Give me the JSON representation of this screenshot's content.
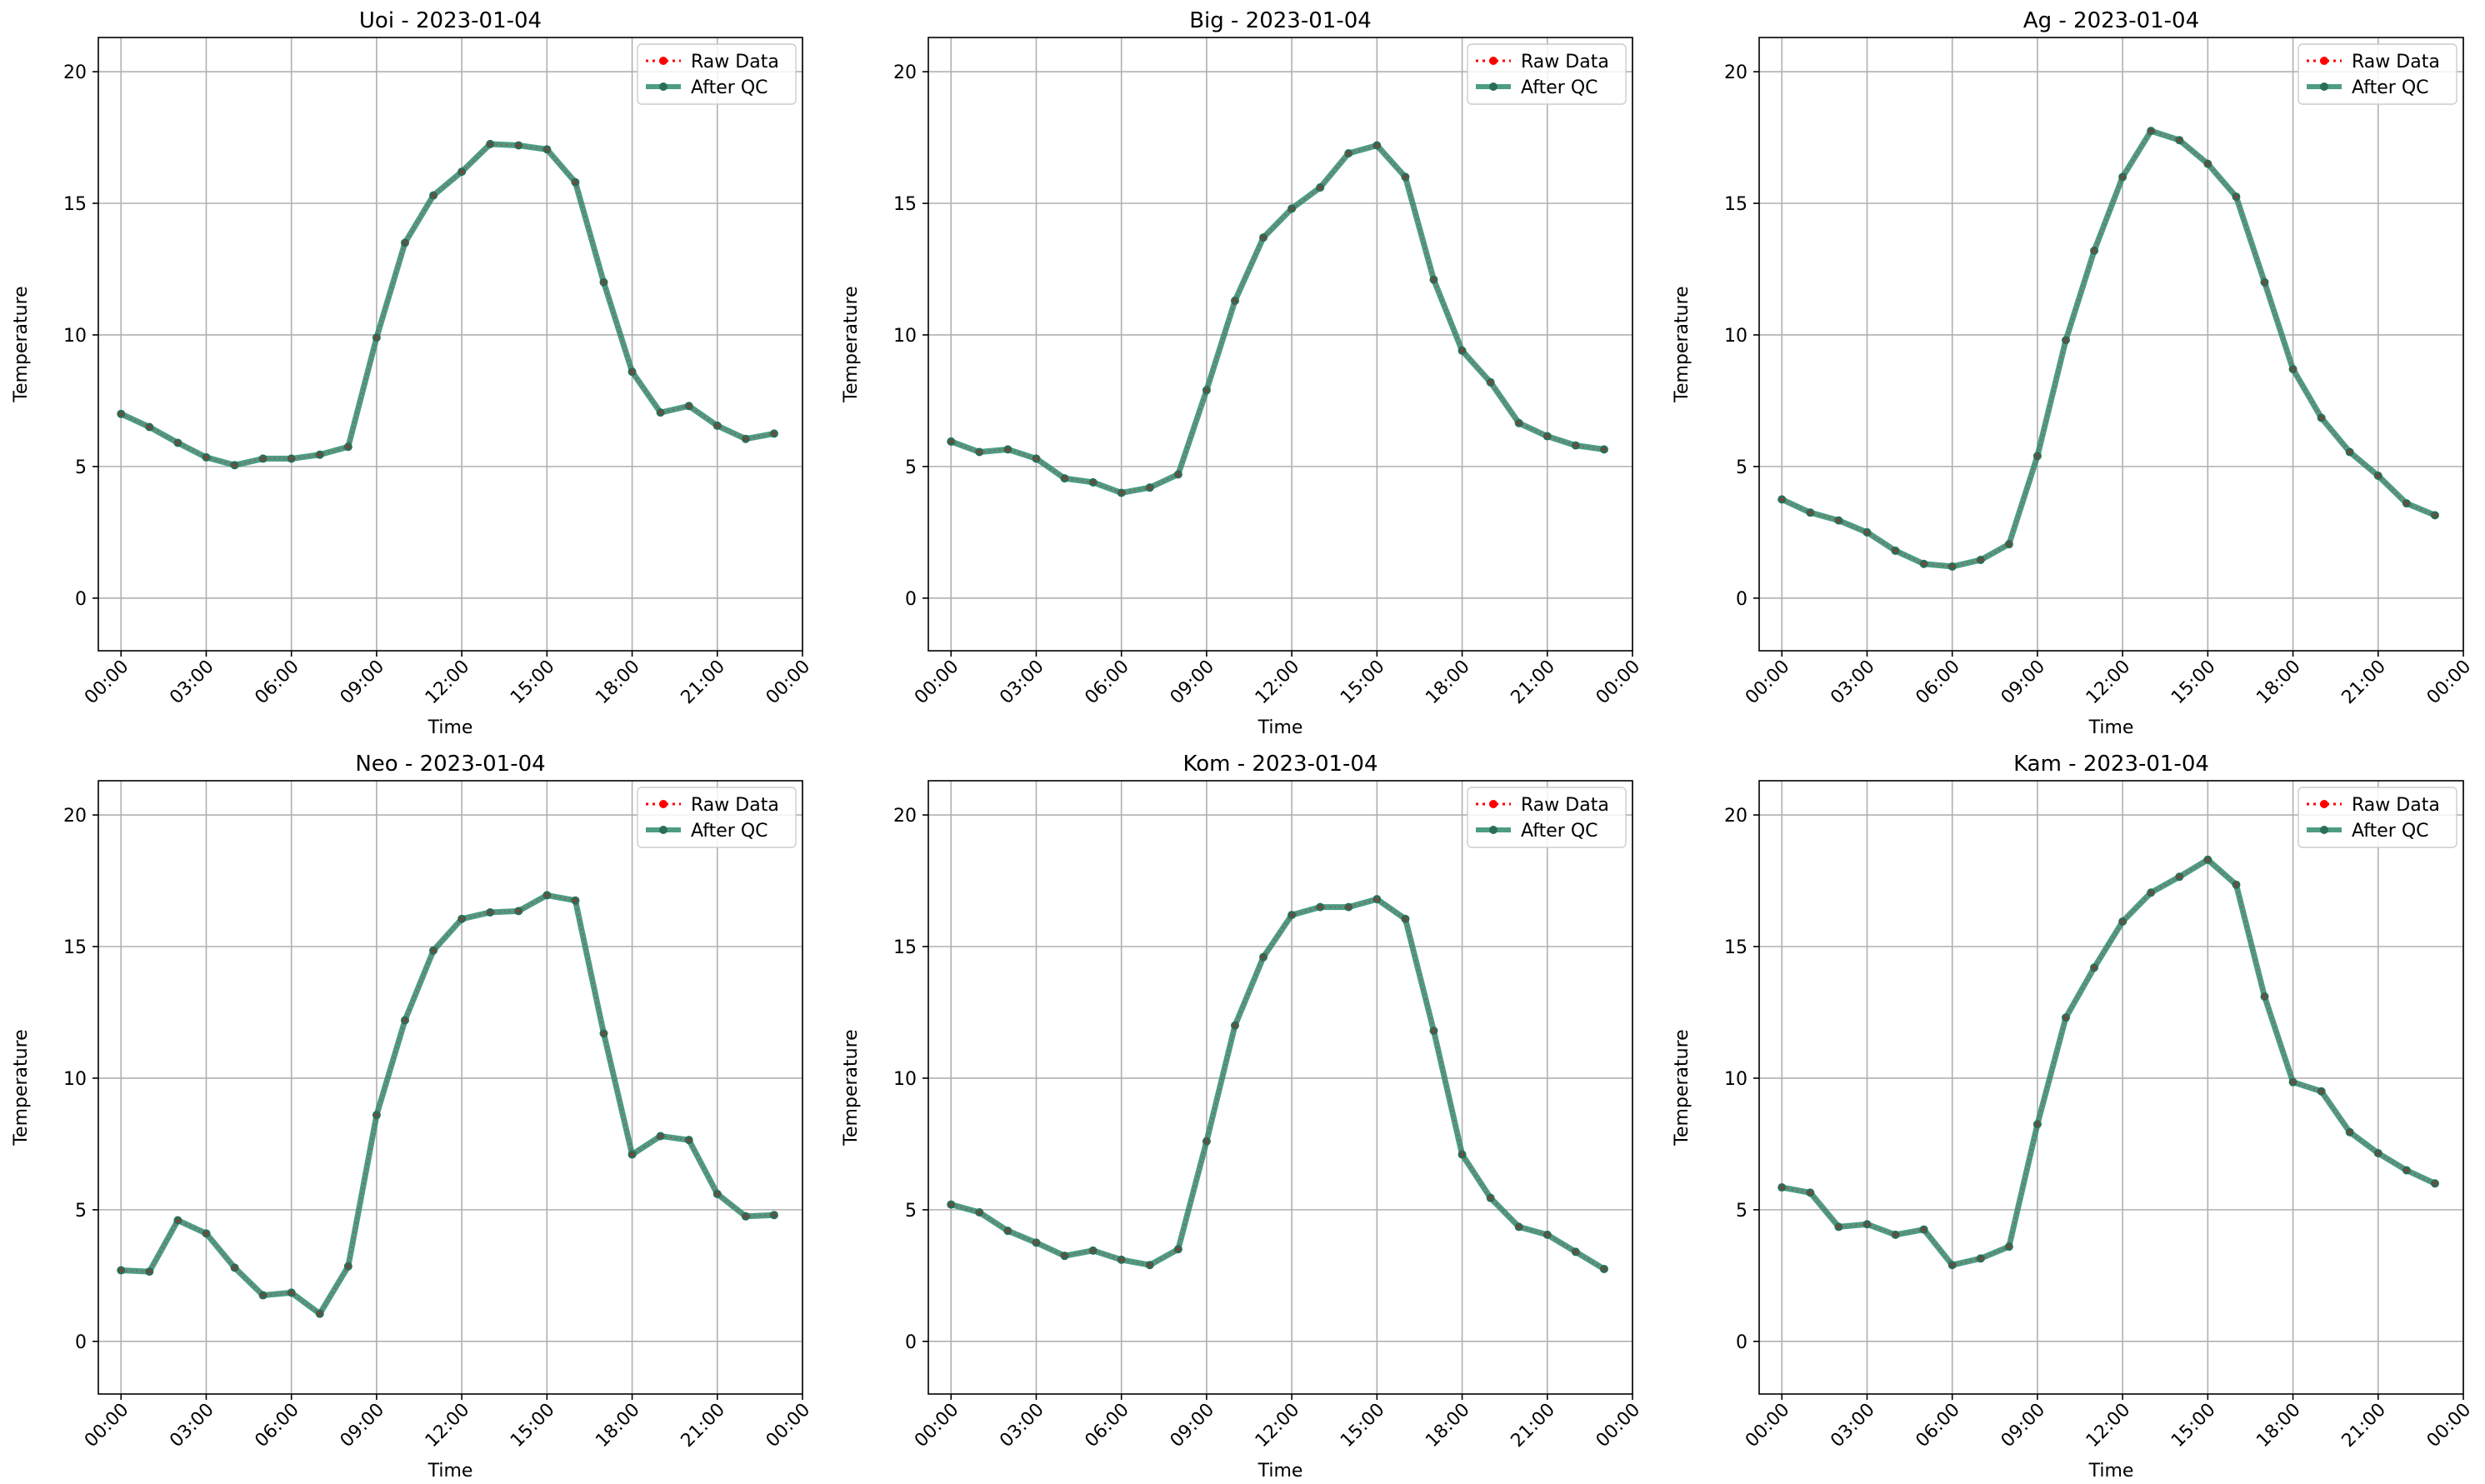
{
  "chart_data": [
    {
      "type": "line",
      "title": "Uoi - 2023-01-04",
      "xlabel": "Time",
      "ylabel": "Temperature",
      "x": [
        "00:00",
        "01:00",
        "02:00",
        "03:00",
        "04:00",
        "05:00",
        "06:00",
        "07:00",
        "08:00",
        "09:00",
        "10:00",
        "11:00",
        "12:00",
        "13:00",
        "14:00",
        "15:00",
        "16:00",
        "17:00",
        "18:00",
        "19:00",
        "20:00",
        "21:00",
        "22:00",
        "23:00"
      ],
      "xticks": [
        "00:00",
        "03:00",
        "06:00",
        "09:00",
        "12:00",
        "15:00",
        "18:00",
        "21:00",
        "00:00"
      ],
      "yticks": [
        0,
        5,
        10,
        15,
        20
      ],
      "ylim": [
        -2,
        21.3
      ],
      "grid": true,
      "legend_position": "top-right",
      "series": [
        {
          "name": "Raw Data",
          "color": "#ff0000",
          "style": "dotted",
          "values": [
            7.0,
            6.5,
            5.9,
            5.35,
            5.05,
            5.3,
            5.3,
            5.45,
            5.75,
            9.9,
            13.5,
            15.3,
            16.2,
            17.25,
            17.2,
            17.05,
            15.8,
            12.0,
            8.6,
            7.05,
            7.3,
            6.55,
            6.05,
            6.25
          ]
        },
        {
          "name": "After QC",
          "color": "#2e8b6f",
          "style": "solid",
          "values": [
            7.0,
            6.5,
            5.9,
            5.35,
            5.05,
            5.3,
            5.3,
            5.45,
            5.75,
            9.9,
            13.5,
            15.3,
            16.2,
            17.25,
            17.2,
            17.05,
            15.8,
            12.0,
            8.6,
            7.05,
            7.3,
            6.55,
            6.05,
            6.25
          ]
        }
      ]
    },
    {
      "type": "line",
      "title": "Big - 2023-01-04",
      "xlabel": "Time",
      "ylabel": "Temperature",
      "x": [
        "00:00",
        "01:00",
        "02:00",
        "03:00",
        "04:00",
        "05:00",
        "06:00",
        "07:00",
        "08:00",
        "09:00",
        "10:00",
        "11:00",
        "12:00",
        "13:00",
        "14:00",
        "15:00",
        "16:00",
        "17:00",
        "18:00",
        "19:00",
        "20:00",
        "21:00",
        "22:00",
        "23:00"
      ],
      "xticks": [
        "00:00",
        "03:00",
        "06:00",
        "09:00",
        "12:00",
        "15:00",
        "18:00",
        "21:00",
        "00:00"
      ],
      "yticks": [
        0,
        5,
        10,
        15,
        20
      ],
      "ylim": [
        -2,
        21.3
      ],
      "grid": true,
      "legend_position": "top-right",
      "series": [
        {
          "name": "Raw Data",
          "color": "#ff0000",
          "style": "dotted",
          "values": [
            5.95,
            5.55,
            5.65,
            5.3,
            4.55,
            4.4,
            4.0,
            4.2,
            4.7,
            7.9,
            11.3,
            13.7,
            14.8,
            15.6,
            16.9,
            17.2,
            16.0,
            12.1,
            9.4,
            8.2,
            6.65,
            6.15,
            5.8,
            5.65
          ]
        },
        {
          "name": "After QC",
          "color": "#2e8b6f",
          "style": "solid",
          "values": [
            5.95,
            5.55,
            5.65,
            5.3,
            4.55,
            4.4,
            4.0,
            4.2,
            4.7,
            7.9,
            11.3,
            13.7,
            14.8,
            15.6,
            16.9,
            17.2,
            16.0,
            12.1,
            9.4,
            8.2,
            6.65,
            6.15,
            5.8,
            5.65
          ]
        }
      ]
    },
    {
      "type": "line",
      "title": "Ag - 2023-01-04",
      "xlabel": "Time",
      "ylabel": "Temperature",
      "x": [
        "00:00",
        "01:00",
        "02:00",
        "03:00",
        "04:00",
        "05:00",
        "06:00",
        "07:00",
        "08:00",
        "09:00",
        "10:00",
        "11:00",
        "12:00",
        "13:00",
        "14:00",
        "15:00",
        "16:00",
        "17:00",
        "18:00",
        "19:00",
        "20:00",
        "21:00",
        "22:00",
        "23:00"
      ],
      "xticks": [
        "00:00",
        "03:00",
        "06:00",
        "09:00",
        "12:00",
        "15:00",
        "18:00",
        "21:00",
        "00:00"
      ],
      "yticks": [
        0,
        5,
        10,
        15,
        20
      ],
      "ylim": [
        -2,
        21.3
      ],
      "grid": true,
      "legend_position": "top-right",
      "series": [
        {
          "name": "Raw Data",
          "color": "#ff0000",
          "style": "dotted",
          "values": [
            3.75,
            3.25,
            2.95,
            2.5,
            1.8,
            1.3,
            1.2,
            1.45,
            2.05,
            5.4,
            9.8,
            13.2,
            16.0,
            17.75,
            17.4,
            16.5,
            15.25,
            12.0,
            8.7,
            6.85,
            5.55,
            4.65,
            3.6,
            3.15
          ]
        },
        {
          "name": "After QC",
          "color": "#2e8b6f",
          "style": "solid",
          "values": [
            3.75,
            3.25,
            2.95,
            2.5,
            1.8,
            1.3,
            1.2,
            1.45,
            2.05,
            5.4,
            9.8,
            13.2,
            16.0,
            17.75,
            17.4,
            16.5,
            15.25,
            12.0,
            8.7,
            6.85,
            5.55,
            4.65,
            3.6,
            3.15
          ]
        }
      ]
    },
    {
      "type": "line",
      "title": "Neo - 2023-01-04",
      "xlabel": "Time",
      "ylabel": "Temperature",
      "x": [
        "00:00",
        "01:00",
        "02:00",
        "03:00",
        "04:00",
        "05:00",
        "06:00",
        "07:00",
        "08:00",
        "09:00",
        "10:00",
        "11:00",
        "12:00",
        "13:00",
        "14:00",
        "15:00",
        "16:00",
        "17:00",
        "18:00",
        "19:00",
        "20:00",
        "21:00",
        "22:00",
        "23:00"
      ],
      "xticks": [
        "00:00",
        "03:00",
        "06:00",
        "09:00",
        "12:00",
        "15:00",
        "18:00",
        "21:00",
        "00:00"
      ],
      "yticks": [
        0,
        5,
        10,
        15,
        20
      ],
      "ylim": [
        -2,
        21.3
      ],
      "grid": true,
      "legend_position": "top-right",
      "series": [
        {
          "name": "Raw Data",
          "color": "#ff0000",
          "style": "dotted",
          "values": [
            2.7,
            2.65,
            4.6,
            4.1,
            2.8,
            1.75,
            1.85,
            1.05,
            2.85,
            8.6,
            12.2,
            14.85,
            16.05,
            16.3,
            16.35,
            16.95,
            16.75,
            11.7,
            7.1,
            7.8,
            7.65,
            5.6,
            4.75,
            4.8
          ]
        },
        {
          "name": "After QC",
          "color": "#2e8b6f",
          "style": "solid",
          "values": [
            2.7,
            2.65,
            4.6,
            4.1,
            2.8,
            1.75,
            1.85,
            1.05,
            2.85,
            8.6,
            12.2,
            14.85,
            16.05,
            16.3,
            16.35,
            16.95,
            16.75,
            11.7,
            7.1,
            7.8,
            7.65,
            5.6,
            4.75,
            4.8
          ]
        }
      ]
    },
    {
      "type": "line",
      "title": "Kom - 2023-01-04",
      "xlabel": "Time",
      "ylabel": "Temperature",
      "x": [
        "00:00",
        "01:00",
        "02:00",
        "03:00",
        "04:00",
        "05:00",
        "06:00",
        "07:00",
        "08:00",
        "09:00",
        "10:00",
        "11:00",
        "12:00",
        "13:00",
        "14:00",
        "15:00",
        "16:00",
        "17:00",
        "18:00",
        "19:00",
        "20:00",
        "21:00",
        "22:00",
        "23:00"
      ],
      "xticks": [
        "00:00",
        "03:00",
        "06:00",
        "09:00",
        "12:00",
        "15:00",
        "18:00",
        "21:00",
        "00:00"
      ],
      "yticks": [
        0,
        5,
        10,
        15,
        20
      ],
      "ylim": [
        -2,
        21.3
      ],
      "grid": true,
      "legend_position": "top-right",
      "series": [
        {
          "name": "Raw Data",
          "color": "#ff0000",
          "style": "dotted",
          "values": [
            5.2,
            4.9,
            4.2,
            3.75,
            3.25,
            3.45,
            3.1,
            2.9,
            3.5,
            7.6,
            12.0,
            14.6,
            16.2,
            16.5,
            16.5,
            16.8,
            16.05,
            11.8,
            7.1,
            5.45,
            4.35,
            4.05,
            3.4,
            2.75
          ]
        },
        {
          "name": "After QC",
          "color": "#2e8b6f",
          "style": "solid",
          "values": [
            5.2,
            4.9,
            4.2,
            3.75,
            3.25,
            3.45,
            3.1,
            2.9,
            3.5,
            7.6,
            12.0,
            14.6,
            16.2,
            16.5,
            16.5,
            16.8,
            16.05,
            11.8,
            7.1,
            5.45,
            4.35,
            4.05,
            3.4,
            2.75
          ]
        }
      ]
    },
    {
      "type": "line",
      "title": "Kam - 2023-01-04",
      "xlabel": "Time",
      "ylabel": "Temperature",
      "x": [
        "00:00",
        "01:00",
        "02:00",
        "03:00",
        "04:00",
        "05:00",
        "06:00",
        "07:00",
        "08:00",
        "09:00",
        "10:00",
        "11:00",
        "12:00",
        "13:00",
        "14:00",
        "15:00",
        "16:00",
        "17:00",
        "18:00",
        "19:00",
        "20:00",
        "21:00",
        "22:00",
        "23:00"
      ],
      "xticks": [
        "00:00",
        "03:00",
        "06:00",
        "09:00",
        "12:00",
        "15:00",
        "18:00",
        "21:00",
        "00:00"
      ],
      "yticks": [
        0,
        5,
        10,
        15,
        20
      ],
      "ylim": [
        -2,
        21.3
      ],
      "grid": true,
      "legend_position": "top-right",
      "series": [
        {
          "name": "Raw Data",
          "color": "#ff0000",
          "style": "dotted",
          "values": [
            5.85,
            5.65,
            4.35,
            4.45,
            4.05,
            4.25,
            2.9,
            3.15,
            3.6,
            8.25,
            12.3,
            14.2,
            15.95,
            17.05,
            17.65,
            18.3,
            17.35,
            13.1,
            9.85,
            9.5,
            7.95,
            7.15,
            6.5,
            6.0
          ]
        },
        {
          "name": "After QC",
          "color": "#2e8b6f",
          "style": "solid",
          "values": [
            5.85,
            5.65,
            4.35,
            4.45,
            4.05,
            4.25,
            2.9,
            3.15,
            3.6,
            8.25,
            12.3,
            14.2,
            15.95,
            17.05,
            17.65,
            18.3,
            17.35,
            13.1,
            9.85,
            9.5,
            7.95,
            7.15,
            6.5,
            6.0
          ]
        }
      ]
    }
  ]
}
